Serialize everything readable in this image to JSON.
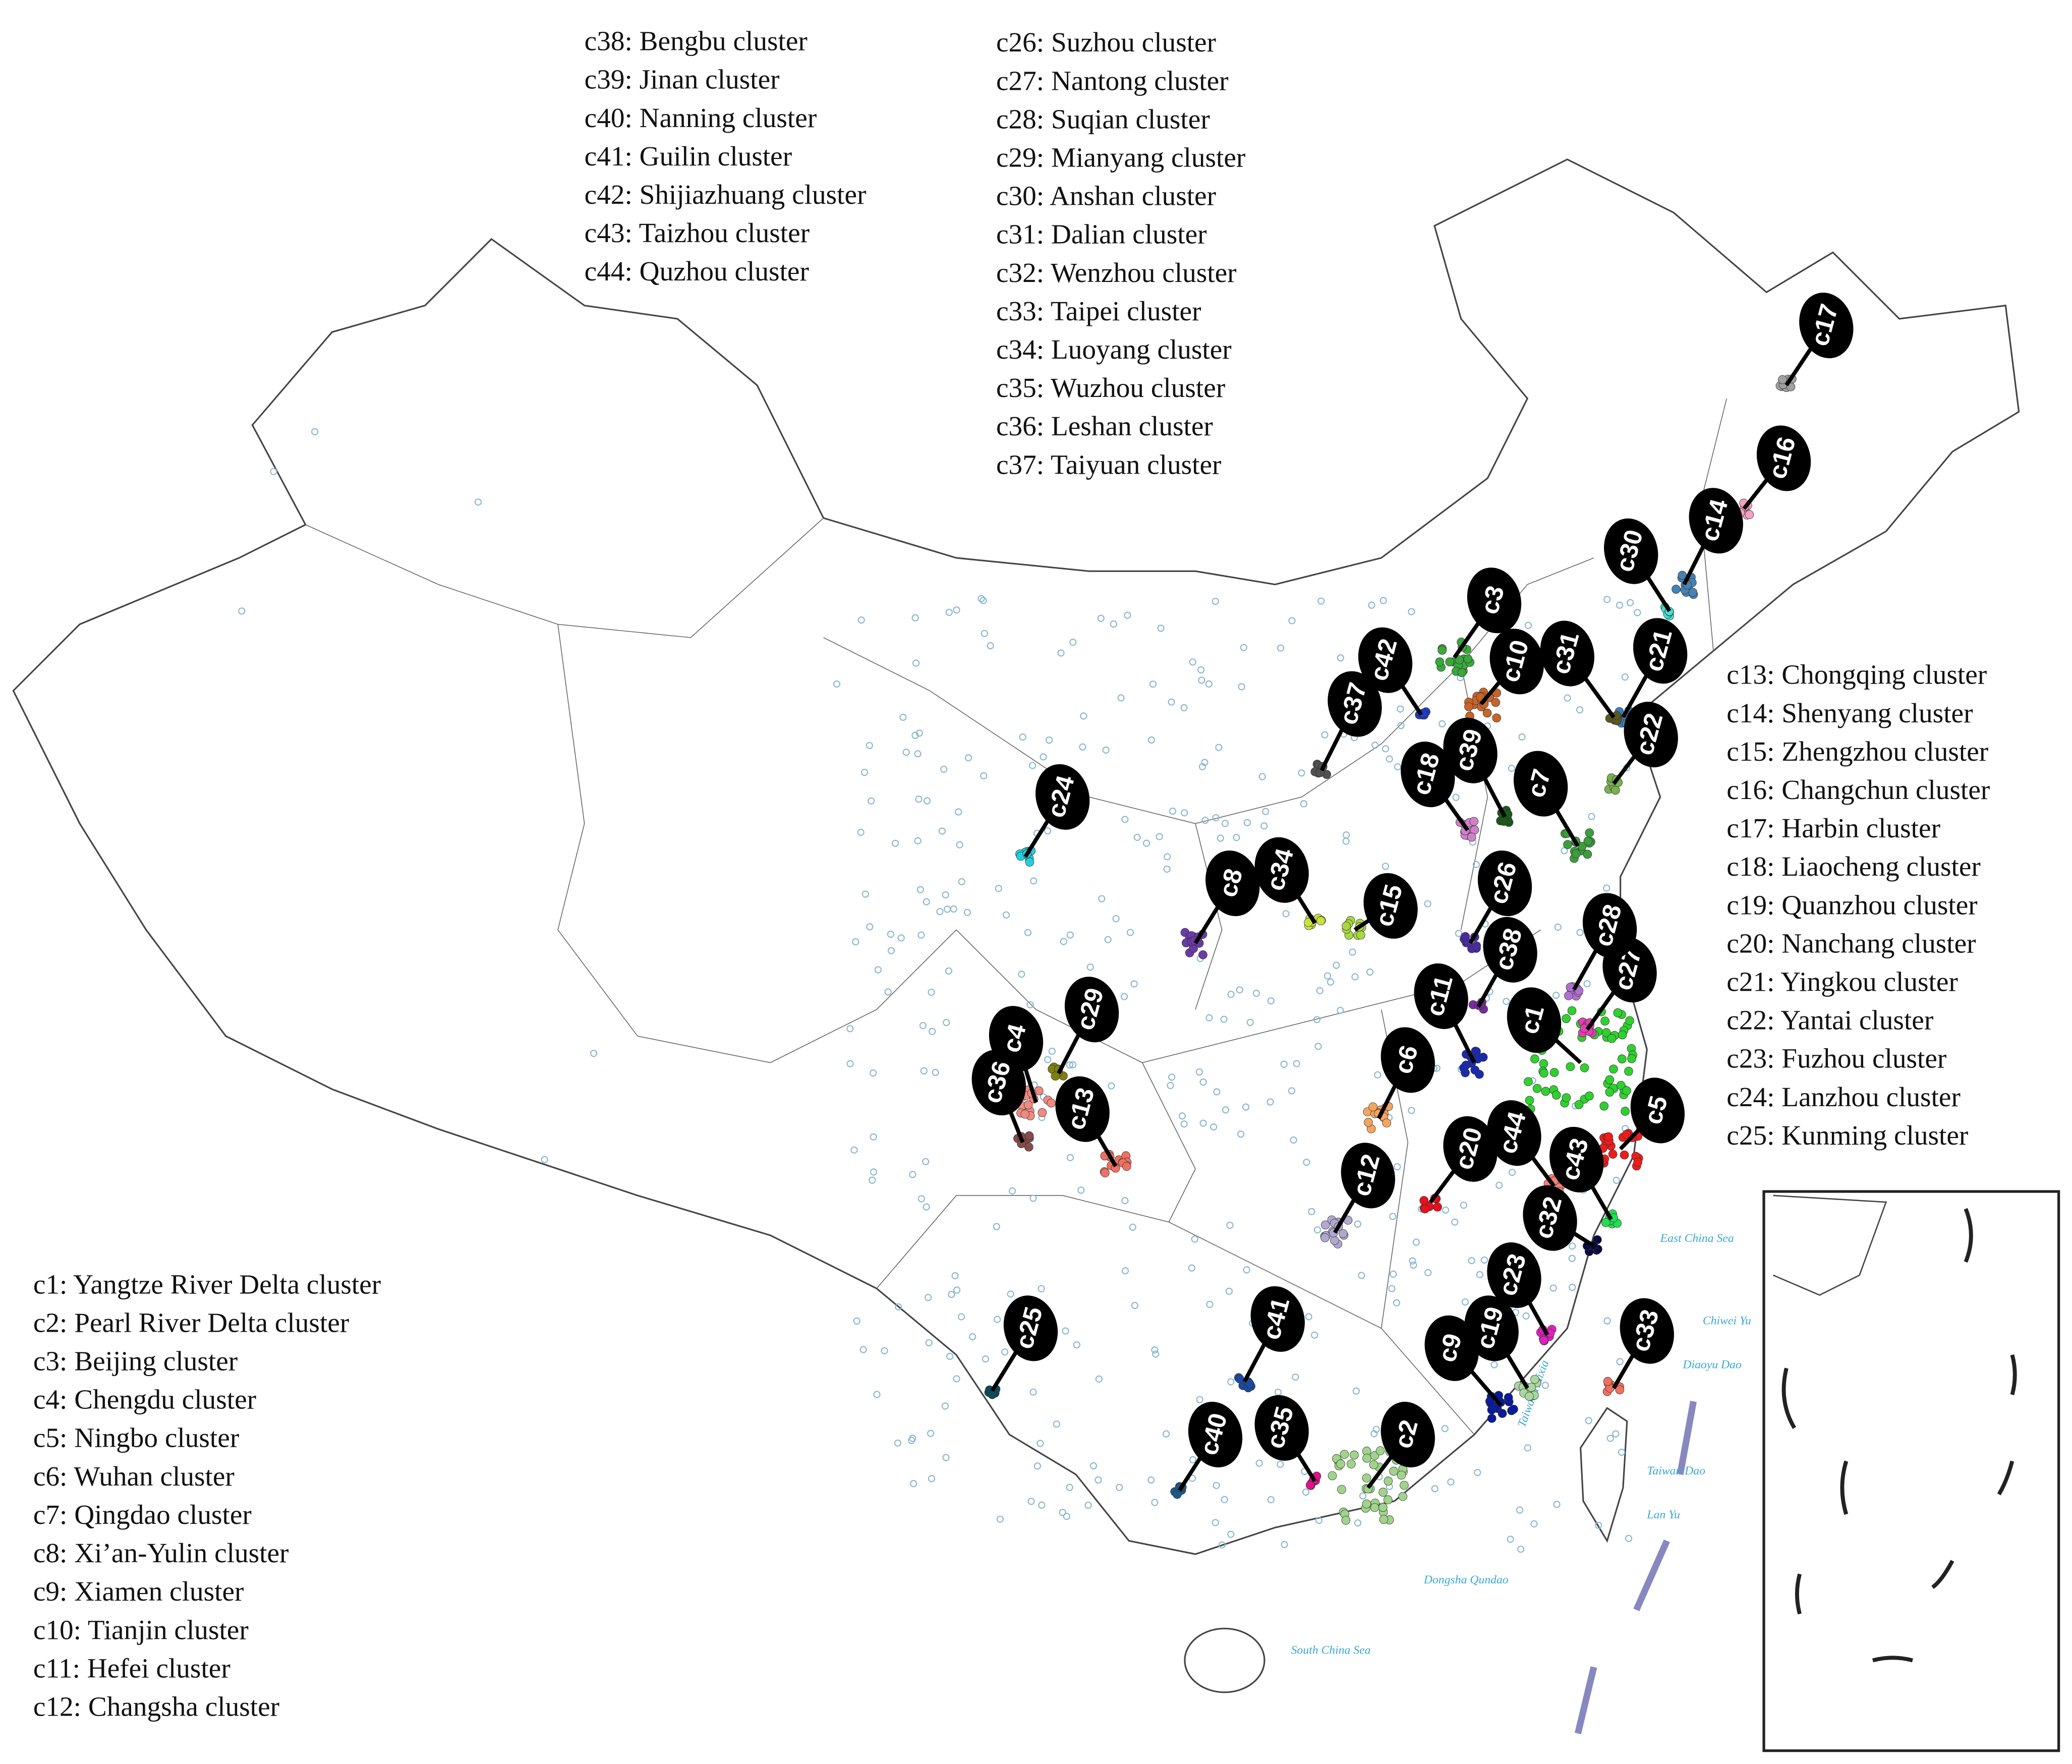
{
  "legend_groups": [
    {
      "items": [
        "c38: Bengbu cluster",
        "c39: Jinan cluster",
        "c40: Nanning cluster",
        "c41: Guilin cluster",
        "c42: Shijiazhuang cluster",
        "c43: Taizhou cluster",
        "c44: Quzhou cluster"
      ]
    },
    {
      "items": [
        "c26: Suzhou cluster",
        "c27: Nantong cluster",
        "c28: Suqian cluster",
        "c29: Mianyang cluster",
        "c30: Anshan cluster",
        "c31: Dalian cluster",
        "c32: Wenzhou cluster",
        "c33: Taipei cluster",
        "c34: Luoyang cluster",
        "c35: Wuzhou cluster",
        "c36: Leshan cluster",
        "c37: Taiyuan cluster"
      ]
    },
    {
      "items": [
        "c13: Chongqing cluster",
        "c14: Shenyang cluster",
        "c15: Zhengzhou cluster",
        "c16: Changchun cluster",
        "c17: Harbin cluster",
        "c18: Liaocheng cluster",
        "c19: Quanzhou cluster",
        "c20: Nanchang cluster",
        "c21: Yingkou cluster",
        "c22: Yantai cluster",
        "c23: Fuzhou cluster",
        "c24: Lanzhou cluster",
        "c25: Kunming cluster"
      ]
    },
    {
      "items": [
        "c1: Yangtze River Delta cluster",
        "c2: Pearl River Delta cluster",
        "c3: Beijing cluster",
        "c4: Chengdu cluster",
        "c5: Ningbo cluster",
        "c6: Wuhan cluster",
        "c7: Qingdao cluster",
        "c8: Xi’an-Yulin cluster",
        "c9: Xiamen cluster",
        "c10: Tianjin cluster",
        "c11: Hefei cluster",
        "c12: Changsha cluster"
      ]
    }
  ],
  "clusters": [
    {
      "label": "c1",
      "color": "#2fd12f"
    },
    {
      "label": "c2",
      "color": "#9fd48a"
    },
    {
      "label": "c3",
      "color": "#3aa83a"
    },
    {
      "label": "c4",
      "color": "#f08a80"
    },
    {
      "label": "c5",
      "color": "#ee1c1c"
    },
    {
      "label": "c6",
      "color": "#f4a460"
    },
    {
      "label": "c7",
      "color": "#3c9e3c"
    },
    {
      "label": "c8",
      "color": "#6a3aa8"
    },
    {
      "label": "c9",
      "color": "#0a1a9a"
    },
    {
      "label": "c10",
      "color": "#c8642a"
    },
    {
      "label": "c11",
      "color": "#1a2ab0"
    },
    {
      "label": "c12",
      "color": "#b0a8d0"
    },
    {
      "label": "c13",
      "color": "#f07060"
    },
    {
      "label": "c14",
      "color": "#4682b4"
    },
    {
      "label": "c15",
      "color": "#a8d840"
    },
    {
      "label": "c16",
      "color": "#f4a0c0"
    },
    {
      "label": "c17",
      "color": "#a0a0a0"
    },
    {
      "label": "c18",
      "color": "#d080c8"
    },
    {
      "label": "c19",
      "color": "#a8d8a0"
    },
    {
      "label": "c20",
      "color": "#e8101a"
    },
    {
      "label": "c21",
      "color": "#3a80c0"
    },
    {
      "label": "c22",
      "color": "#7ab050"
    },
    {
      "label": "c23",
      "color": "#e020c0"
    },
    {
      "label": "c24",
      "color": "#20d0e0"
    },
    {
      "label": "c25",
      "color": "#0a4a5a"
    },
    {
      "label": "c26",
      "color": "#4a2aa0"
    },
    {
      "label": "c27",
      "color": "#e040b0"
    },
    {
      "label": "c28",
      "color": "#b070d0"
    },
    {
      "label": "c29",
      "color": "#808010"
    },
    {
      "label": "c30",
      "color": "#40e0d0"
    },
    {
      "label": "c31",
      "color": "#5a5a20"
    },
    {
      "label": "c32",
      "color": "#0a0a40"
    },
    {
      "label": "c33",
      "color": "#f07060"
    },
    {
      "label": "c34",
      "color": "#c8e040"
    },
    {
      "label": "c35",
      "color": "#e0108a"
    },
    {
      "label": "c36",
      "color": "#8a4a4a"
    },
    {
      "label": "c37",
      "color": "#505050"
    },
    {
      "label": "c38",
      "color": "#7a2aa0"
    },
    {
      "label": "c39",
      "color": "#1a5a1a"
    },
    {
      "label": "c40",
      "color": "#1a5a8a"
    },
    {
      "label": "c41",
      "color": "#1a4aa0"
    },
    {
      "label": "c42",
      "color": "#1a3ad0"
    },
    {
      "label": "c43",
      "color": "#20e050"
    },
    {
      "label": "c44",
      "color": "#f08070"
    }
  ],
  "sea_labels": [
    "East China Sea",
    "South China Sea",
    "Taiwan Haixia",
    "Taiwan Dao",
    "Dongsha Qundao",
    "Lan Yu",
    "Chiwei Yu",
    "Diaoyu Dao"
  ]
}
